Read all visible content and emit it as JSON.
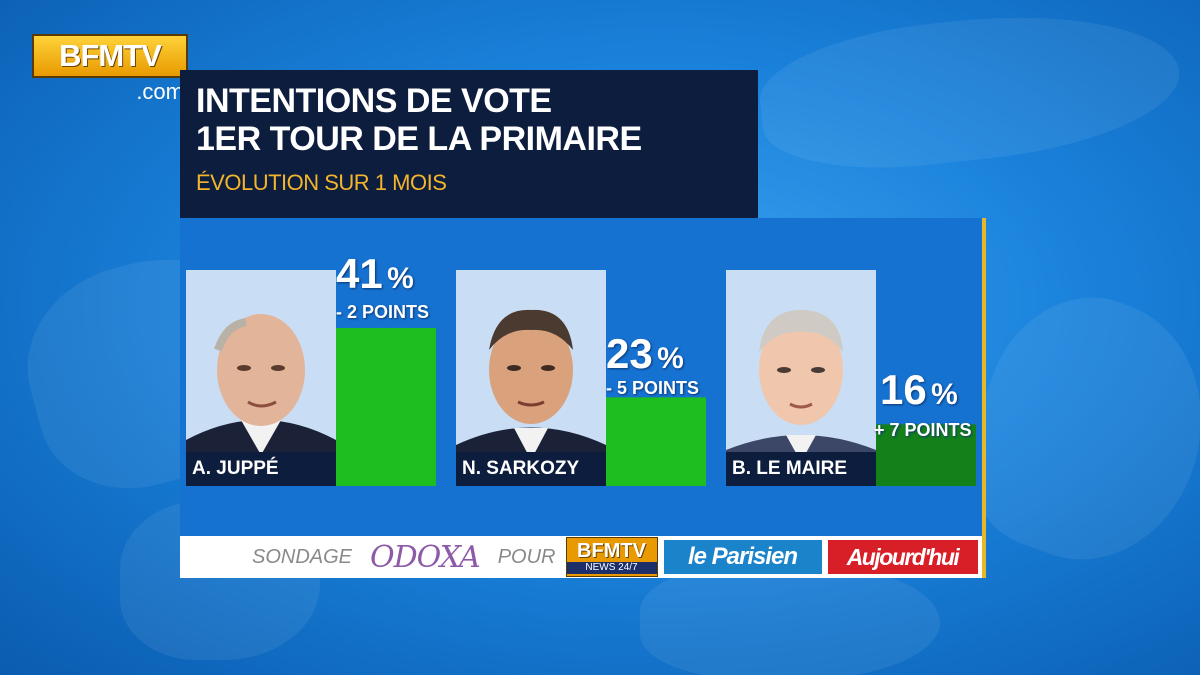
{
  "channel": {
    "logo_text": "BFMTV",
    "logo_domain": ".com"
  },
  "header": {
    "title_line1": "INTENTIONS DE VOTE",
    "title_line2": "1ER TOUR DE LA PRIMAIRE",
    "subtitle": "ÉVOLUTION SUR 1 MOIS"
  },
  "chart_data": {
    "type": "bar",
    "title": "INTENTIONS DE VOTE 1ER TOUR DE LA PRIMAIRE",
    "subtitle": "ÉVOLUTION SUR 1 MOIS",
    "categories": [
      "A. JUPPÉ",
      "N. SARKOZY",
      "B. LE MAIRE"
    ],
    "values": [
      41,
      23,
      16
    ],
    "value_labels": [
      "41",
      "23",
      "16"
    ],
    "unit": "%",
    "changes": [
      "- 2 POINTS",
      "- 5 POINTS",
      "+ 7 POINTS"
    ],
    "bar_colors": [
      "#1fbe20",
      "#1fbe20",
      "#13801a"
    ],
    "ylim": [
      0,
      41
    ],
    "grid": false,
    "legend": "none"
  },
  "source": {
    "label_sondage": "SONDAGE",
    "pollster": "ODOXA",
    "label_pour": "POUR",
    "partner1_top": "BFMTV",
    "partner1_bottom": "NEWS 24/7",
    "partner2": "le Parisien",
    "partner3": "Aujourd'hui"
  },
  "colors": {
    "header_bg": "#0d1d3e",
    "subtitle": "#f3b52b",
    "panel_bg": "#1672d1",
    "accent_border": "#e6b728"
  },
  "icons": [
    "bfmtv-logo",
    "candidate-photo"
  ]
}
